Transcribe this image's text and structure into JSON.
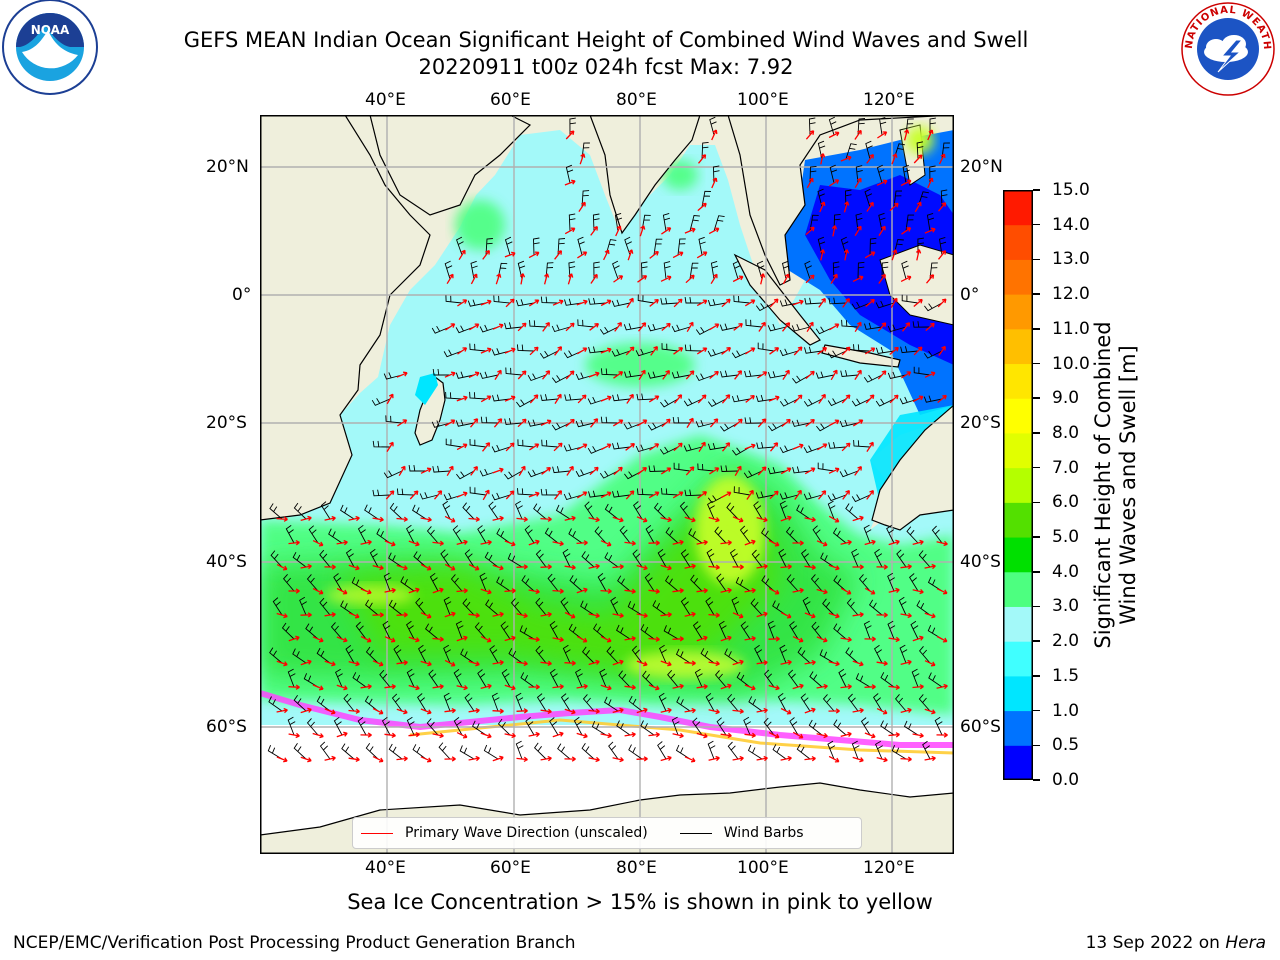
{
  "title": {
    "line1": "GEFS MEAN Indian Ocean Significant Height of Combined Wind Waves and Swell",
    "line2": "20220911 t00z 024h fcst   Max: 7.92"
  },
  "logos": {
    "noaa": {
      "text": "NOAA"
    },
    "nws": {
      "ring_text": "NATIONAL WEATHER SERVICE"
    }
  },
  "map": {
    "lon_labels": [
      "40°E",
      "60°E",
      "80°E",
      "100°E",
      "120°E"
    ],
    "lat_labels": [
      "20°N",
      "0°",
      "20°S",
      "40°S",
      "60°S"
    ],
    "colors": {
      "land": "#efefdc",
      "ocean_base": "#a3f9f9",
      "coast": "#000000",
      "wind_barb": "#000000",
      "wave_arrow": "#ff0000"
    }
  },
  "legend": {
    "wave": "Primary Wave Direction (unscaled)",
    "wind": "Wind Barbs"
  },
  "colorbar": {
    "label_line1": "Significant Height of Combined",
    "label_line2": "Wind Waves and Swell [m]",
    "ticks": [
      "0.0",
      "0.5",
      "1.0",
      "1.5",
      "2.0",
      "3.0",
      "4.0",
      "5.0",
      "6.0",
      "7.0",
      "8.0",
      "9.0",
      "10.0",
      "11.0",
      "12.0",
      "13.0",
      "14.0",
      "15.0"
    ],
    "colors": [
      "#0000ff",
      "#0073ff",
      "#00e6ff",
      "#40ffff",
      "#a3f9f9",
      "#4dff80",
      "#00e000",
      "#53e000",
      "#b4ff00",
      "#e1ff00",
      "#ffff00",
      "#ffe600",
      "#ffbf00",
      "#ff9900",
      "#ff7300",
      "#ff4d00",
      "#ff1a00"
    ]
  },
  "ice_note": "Sea Ice Concentration > 15% is shown in pink to yellow",
  "footer": {
    "left": "NCEP/EMC/Verification Post Processing Product Generation Branch",
    "date": "13 Sep 2022 on",
    "machine": "Hera"
  }
}
